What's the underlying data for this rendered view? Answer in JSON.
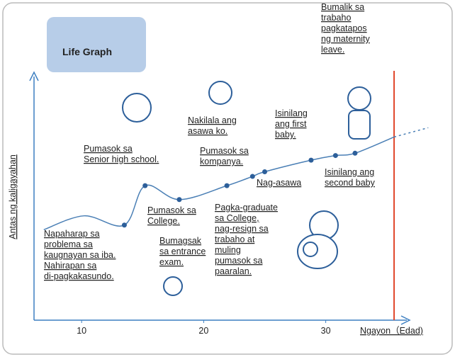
{
  "chart_data": {
    "type": "line",
    "title": "Life Graph",
    "y_label": "Antas ng kaligayahan",
    "x_label": "Ngayon（Edad)",
    "xlim": [
      6.1,
      36.7
    ],
    "ylim": [
      -0.4,
      10.2
    ],
    "xticks": [
      10,
      20,
      30
    ],
    "x": [
      6.9,
      10.2,
      13.5,
      15.2,
      18.0,
      21.9,
      24.0,
      25.0,
      28.8,
      30.8,
      32.4,
      35.6
    ],
    "values": [
      3.5,
      4.1,
      3.7,
      5.4,
      4.8,
      5.4,
      5.8,
      6.0,
      6.5,
      6.7,
      6.8,
      7.5
    ],
    "color": "#4a7fb5",
    "points": {
      "x": [
        13.5,
        15.2,
        18.0,
        21.9,
        24.0,
        25.0,
        28.8,
        30.8,
        32.4
      ],
      "values": [
        3.7,
        5.4,
        4.8,
        5.4,
        5.8,
        6.0,
        6.5,
        6.7,
        6.8
      ]
    },
    "projection": {
      "x": [
        35.6,
        38.4
      ],
      "values": [
        7.5,
        7.9
      ]
    },
    "now": 35.6,
    "annotations": [
      [
        "Napaharap sa",
        "problema sa",
        "kaugnayan sa iba.",
        "Nahirapan sa",
        "di-pagkakasundo."
      ],
      [
        "Pumasok sa",
        "Senior high school."
      ],
      [
        "Pumasok sa",
        "College."
      ],
      [
        "Bumagsak",
        "sa entrance",
        "exam."
      ],
      [
        "Pagka-graduate",
        "sa College,",
        "nag-resign sa",
        "trabaho at",
        "muling",
        "pumasok sa",
        "paaralan."
      ],
      [
        "Nakilala ang",
        "asawa ko."
      ],
      [
        "Pumasok sa",
        "kompanya."
      ],
      [
        "Nag-asawa"
      ],
      [
        "Isinilang",
        "ang first",
        "baby."
      ],
      [
        "Isinilang ang",
        "second baby"
      ],
      [
        "Bumalik sa",
        "trabaho",
        "pagkatapos",
        "ng maternity",
        "leave."
      ]
    ]
  }
}
